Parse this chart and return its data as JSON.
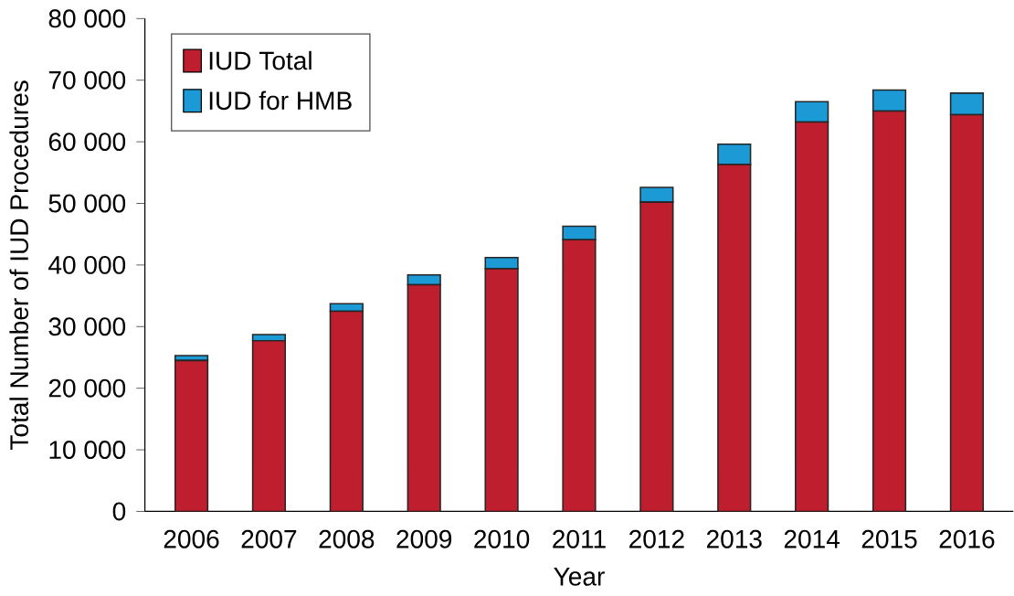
{
  "chart_data": {
    "type": "bar",
    "stacked": true,
    "xlabel": "Year",
    "ylabel": "Total Number of IUD Procedures",
    "categories": [
      "2006",
      "2007",
      "2008",
      "2009",
      "2010",
      "2011",
      "2012",
      "2013",
      "2014",
      "2015",
      "2016"
    ],
    "series": [
      {
        "name": "IUD Total",
        "color": "#be1e2d",
        "values": [
          24500,
          27700,
          32500,
          36800,
          39400,
          44100,
          50200,
          56300,
          63200,
          65000,
          64400
        ]
      },
      {
        "name": "IUD for HMB",
        "color": "#1b9ad6",
        "values": [
          800,
          1000,
          1200,
          1600,
          1800,
          2200,
          2400,
          3300,
          3300,
          3400,
          3500
        ]
      }
    ],
    "ylim": [
      0,
      80000
    ],
    "yticks": [
      0,
      {
        "value": 10000,
        "label": "10 000"
      },
      {
        "value": 20000,
        "label": "20 000"
      },
      {
        "value": 30000,
        "label": "30 000"
      },
      {
        "value": 40000,
        "label": "40 000"
      },
      {
        "value": 50000,
        "label": "50 000"
      },
      {
        "value": 60000,
        "label": "60 000"
      },
      {
        "value": 70000,
        "label": "70 000"
      },
      {
        "value": 80000,
        "label": "80 000"
      }
    ],
    "grid": false,
    "legend": "top left"
  }
}
